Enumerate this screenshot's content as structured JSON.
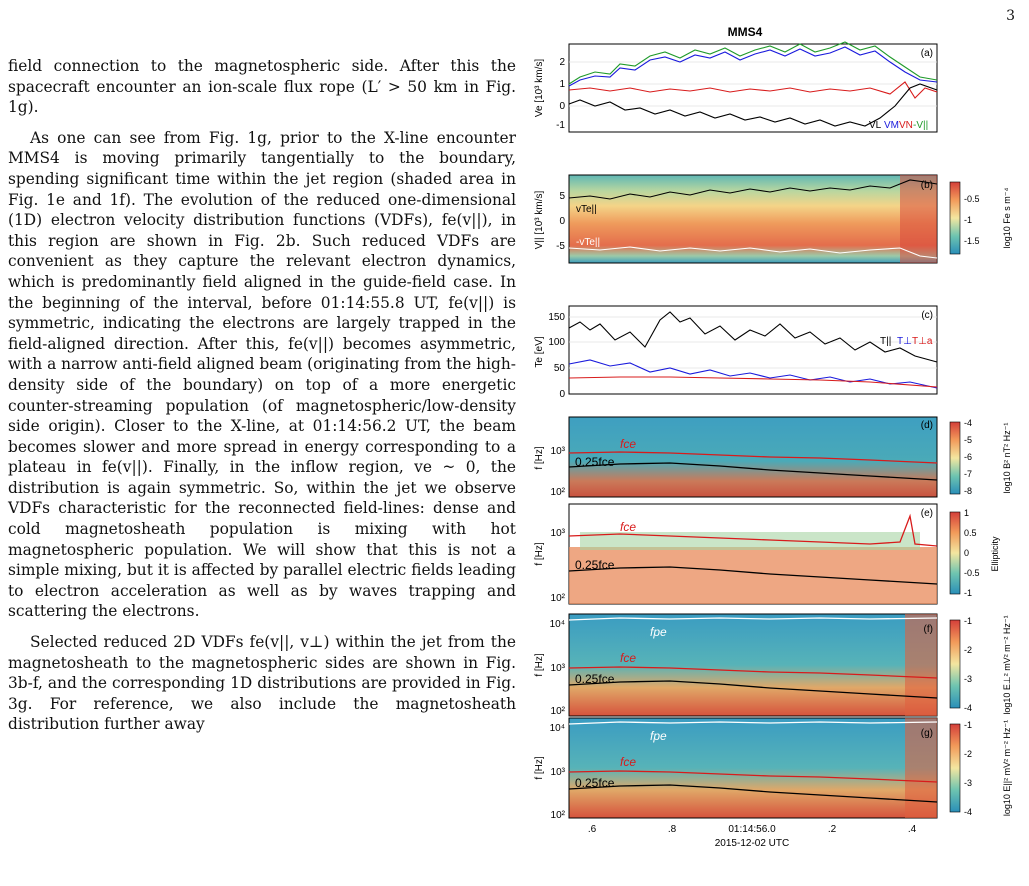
{
  "page_number": "3",
  "paragraphs": [
    "field connection to the magnetospheric side. After this the spacecraft encounter an ion-scale flux rope (L′ > 50 km in Fig. 1g).",
    "As one can see from Fig. 1g, prior to the X-line encounter MMS4 is moving primarily tangentially to the boundary, spending significant time within the jet region (shaded area in Fig. 1e and 1f). The evolution of the reduced one-dimensional (1D) electron velocity distribution functions (VDFs), fe(v||), in this region are shown in Fig. 2b. Such reduced VDFs are convenient as they capture the relevant electron dynamics, which is predominantly field aligned in the guide-field case. In the beginning of the interval, before 01:14:55.8 UT, fe(v||) is symmetric, indicating the electrons are largely trapped in the field-aligned direction. After this, fe(v||) becomes asymmetric, with a narrow anti-field aligned beam (originating from the high-density side of the boundary) on top of a more energetic counter-streaming population (of magnetospheric/low-density side origin). Closer to the X-line, at 01:14:56.2 UT, the beam becomes slower and more spread in energy corresponding to a plateau in fe(v||). Finally, in the inflow region, ve ~ 0, the distribution is again symmetric. So, within the jet we observe VDFs characteristic for the reconnected field-lines: dense and cold magnetosheath population is mixing with hot magnetospheric population. We will show that this is not a simple mixing, but it is affected by parallel electric fields leading to electron acceleration as well as by waves trapping and scattering the electrons.",
    "Selected reduced 2D VDFs fe(v||, v⊥) within the jet from the magnetosheath to the magnetospheric sides are shown in Fig. 3b-f, and the corresponding 1D distributions are provided in Fig. 3g. For reference, we also include the magnetosheath distribution further away"
  ],
  "figure": {
    "title": "MMS4",
    "xlabel": "2015-12-02 UTC",
    "xticks": [
      ".6",
      ".8",
      "01:14:56.0",
      ".2",
      ".4"
    ],
    "panels": [
      {
        "label": "(a)",
        "ylabel": "Ve [10³ km/s]",
        "yticks": [
          "2",
          "1",
          "0",
          "-1"
        ],
        "legend": [
          "VL",
          "VM",
          "VN",
          "-V||"
        ],
        "legend_colors": [
          "#000000",
          "#1a1adc",
          "#d81b1b",
          "#1f9a2a"
        ]
      },
      {
        "label": "(b)",
        "ylabel": "V|| [10³ km/s]",
        "yticks": [
          "5",
          "0",
          "-5"
        ],
        "annotations": [
          "vTe||",
          "-vTe||"
        ],
        "colorbar_label": "log10 Fe s m⁻⁴",
        "colorbar_ticks": [
          "-0.5",
          "-1",
          "-1.5"
        ]
      },
      {
        "label": "(c)",
        "ylabel": "Te [eV]",
        "yticks": [
          "150",
          "100",
          "50",
          "0"
        ],
        "legend": [
          "T||",
          "T⊥",
          "T⊥a"
        ],
        "legend_colors": [
          "#000000",
          "#1a1adc",
          "#d81b1b"
        ]
      },
      {
        "label": "(d)",
        "ylabel": "f [Hz]",
        "yticks": [
          "10³",
          "10²"
        ],
        "annotations": [
          "fce",
          "0.25fce"
        ],
        "colorbar_label": "log10 B² nT² Hz⁻¹",
        "colorbar_ticks": [
          "-4",
          "-5",
          "-6",
          "-7",
          "-8"
        ]
      },
      {
        "label": "(e)",
        "ylabel": "f [Hz]",
        "yticks": [
          "10³",
          "10²"
        ],
        "annotations": [
          "fce",
          "0.25fce"
        ],
        "colorbar_label": "Ellipticity",
        "colorbar_ticks": [
          "1",
          "0.5",
          "0",
          "-0.5",
          "-1"
        ]
      },
      {
        "label": "(f)",
        "ylabel": "f [Hz]",
        "yticks": [
          "10⁴",
          "10³",
          "10²"
        ],
        "annotations": [
          "fpe",
          "fce",
          "0.25fce"
        ],
        "colorbar_label": "log10 E⊥² mV² m⁻² Hz⁻¹",
        "colorbar_ticks": [
          "-1",
          "-2",
          "-3",
          "-4"
        ]
      },
      {
        "label": "(g)",
        "ylabel": "f [Hz]",
        "yticks": [
          "10⁴",
          "10³",
          "10²"
        ],
        "annotations": [
          "fpe",
          "fce",
          "0.25fce"
        ],
        "colorbar_label": "log10 E||² mV² m⁻² Hz⁻¹",
        "colorbar_ticks": [
          "-1",
          "-2",
          "-3",
          "-4"
        ]
      }
    ]
  }
}
